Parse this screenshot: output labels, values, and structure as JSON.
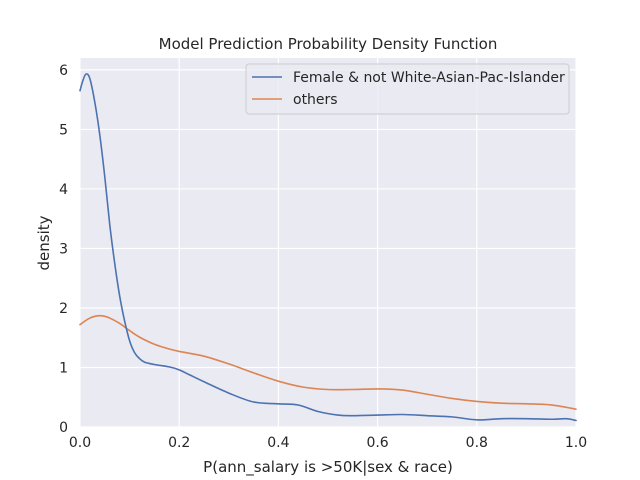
{
  "chart_data": {
    "type": "line",
    "title": "Model Prediction Probability Density Function",
    "xlabel": "P(ann_salary is >50K|sex & race)",
    "ylabel": "density",
    "xlim": [
      0.0,
      1.0
    ],
    "ylim": [
      0,
      6.2
    ],
    "xticks": [
      0.0,
      0.2,
      0.4,
      0.6,
      0.8,
      1.0
    ],
    "xtick_labels": [
      "0.0",
      "0.2",
      "0.4",
      "0.6",
      "0.8",
      "1.0"
    ],
    "yticks": [
      0,
      1,
      2,
      3,
      4,
      5,
      6
    ],
    "ytick_labels": [
      "0",
      "1",
      "2",
      "3",
      "4",
      "5",
      "6"
    ],
    "grid": true,
    "legend_position": "top-right",
    "series": [
      {
        "name": "Female & not White-Asian-Pac-Islander",
        "color": "#4c72b0",
        "points": [
          [
            0.0,
            5.65
          ],
          [
            0.005,
            5.8
          ],
          [
            0.012,
            5.93
          ],
          [
            0.02,
            5.85
          ],
          [
            0.03,
            5.45
          ],
          [
            0.04,
            4.9
          ],
          [
            0.05,
            4.2
          ],
          [
            0.06,
            3.4
          ],
          [
            0.07,
            2.75
          ],
          [
            0.08,
            2.2
          ],
          [
            0.09,
            1.78
          ],
          [
            0.1,
            1.45
          ],
          [
            0.11,
            1.25
          ],
          [
            0.12,
            1.15
          ],
          [
            0.13,
            1.09
          ],
          [
            0.15,
            1.05
          ],
          [
            0.18,
            1.01
          ],
          [
            0.2,
            0.96
          ],
          [
            0.22,
            0.88
          ],
          [
            0.25,
            0.76
          ],
          [
            0.3,
            0.57
          ],
          [
            0.35,
            0.42
          ],
          [
            0.4,
            0.39
          ],
          [
            0.44,
            0.37
          ],
          [
            0.48,
            0.26
          ],
          [
            0.52,
            0.2
          ],
          [
            0.55,
            0.19
          ],
          [
            0.6,
            0.2
          ],
          [
            0.65,
            0.21
          ],
          [
            0.7,
            0.19
          ],
          [
            0.75,
            0.17
          ],
          [
            0.8,
            0.12
          ],
          [
            0.85,
            0.14
          ],
          [
            0.9,
            0.14
          ],
          [
            0.95,
            0.13
          ],
          [
            0.98,
            0.14
          ],
          [
            1.0,
            0.11
          ]
        ]
      },
      {
        "name": "others",
        "color": "#dd8452",
        "points": [
          [
            0.0,
            1.72
          ],
          [
            0.01,
            1.78
          ],
          [
            0.02,
            1.83
          ],
          [
            0.03,
            1.86
          ],
          [
            0.04,
            1.87
          ],
          [
            0.05,
            1.86
          ],
          [
            0.06,
            1.83
          ],
          [
            0.08,
            1.74
          ],
          [
            0.1,
            1.62
          ],
          [
            0.12,
            1.51
          ],
          [
            0.15,
            1.39
          ],
          [
            0.18,
            1.31
          ],
          [
            0.2,
            1.27
          ],
          [
            0.25,
            1.19
          ],
          [
            0.3,
            1.06
          ],
          [
            0.35,
            0.91
          ],
          [
            0.4,
            0.77
          ],
          [
            0.45,
            0.67
          ],
          [
            0.5,
            0.63
          ],
          [
            0.55,
            0.63
          ],
          [
            0.6,
            0.64
          ],
          [
            0.65,
            0.62
          ],
          [
            0.7,
            0.55
          ],
          [
            0.75,
            0.48
          ],
          [
            0.8,
            0.43
          ],
          [
            0.85,
            0.4
          ],
          [
            0.9,
            0.39
          ],
          [
            0.95,
            0.37
          ],
          [
            1.0,
            0.3
          ]
        ]
      }
    ]
  }
}
